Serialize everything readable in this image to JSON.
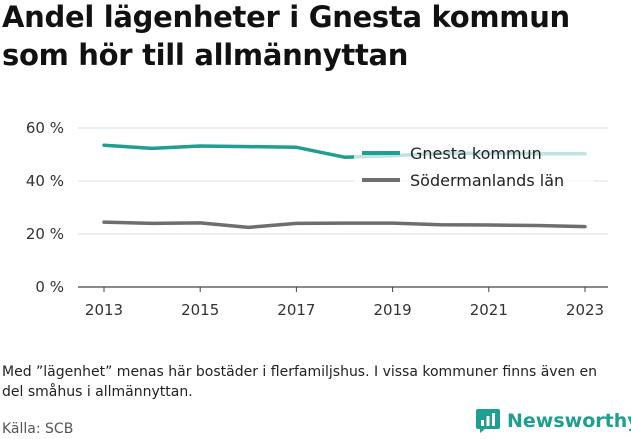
{
  "title": "Andel lägenheter i Gnesta kommun som hör till allmännyttan",
  "note": "Med ”lägenhet” menas här bostäder i flerfamiljshus. I vissa kommuner finns även en del småhus i allmännyttan.",
  "source": "Källa: SCB",
  "brand": {
    "name": "Newsworthy",
    "icon": "newsworthy-logo-icon",
    "color": "#1f9e92"
  },
  "chart_data": {
    "type": "line",
    "x": [
      2013,
      2014,
      2015,
      2016,
      2017,
      2018,
      2019,
      2020,
      2021,
      2022,
      2023
    ],
    "x_ticks": [
      "2013",
      "2015",
      "2017",
      "2019",
      "2021",
      "2023"
    ],
    "y_ticks": [
      "0 %",
      "20 %",
      "40 %",
      "60 %"
    ],
    "ylim": [
      0,
      60
    ],
    "grid": true,
    "legend_position": "top-right",
    "series": [
      {
        "name": "Gnesta kommun",
        "color": "#1f9e92",
        "values": [
          53.5,
          52.3,
          53.2,
          53.0,
          52.7,
          49.0,
          49.5,
          50.5,
          50.5,
          50.3,
          50.3
        ]
      },
      {
        "name": "Södermanlands län",
        "color": "#6d6e71",
        "values": [
          24.5,
          24.0,
          24.2,
          22.5,
          24.0,
          24.1,
          24.1,
          23.5,
          23.4,
          23.2,
          22.8
        ]
      }
    ]
  }
}
